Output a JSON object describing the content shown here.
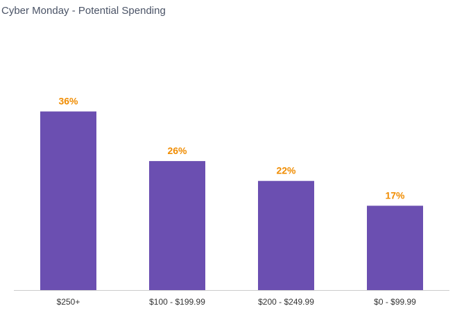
{
  "chart_data": {
    "type": "bar",
    "title": "Cyber Monday - Potential Spending",
    "categories": [
      "$250+",
      "$100 - $199.99",
      "$200 - $249.99",
      "$0 - $99.99"
    ],
    "values": [
      36,
      26,
      22,
      17
    ],
    "data_labels": [
      "36%",
      "26%",
      "22%",
      "17%"
    ],
    "ylim": [
      0,
      40
    ],
    "grid": false,
    "legend": "none"
  },
  "colors": {
    "bar": "#6b4fb1",
    "data_label": "#f08c00",
    "axis": "#cccccc",
    "tick_label": "#333333",
    "title": "#4a5366"
  }
}
